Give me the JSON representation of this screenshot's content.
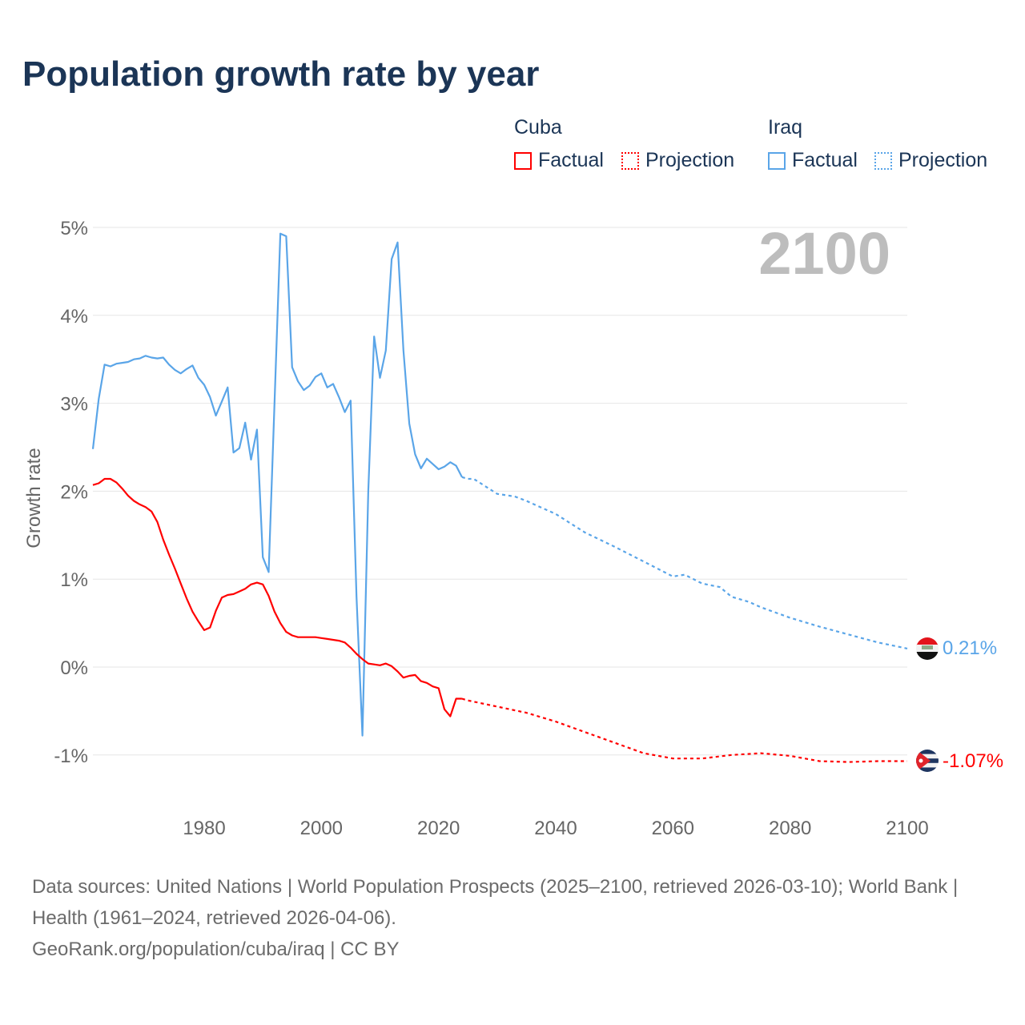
{
  "title": "Population growth rate by year",
  "legend": {
    "groups": [
      {
        "name": "Cuba",
        "color": "#ff0000",
        "factual": "Factual",
        "projection": "Projection"
      },
      {
        "name": "Iraq",
        "color": "#5aa5e8",
        "factual": "Factual",
        "projection": "Projection"
      }
    ]
  },
  "year_label": "2100",
  "footer": {
    "sources": "Data sources: United Nations | World Population Prospects (2025–2100, retrieved 2026-03-10); World Bank | Health (1961–2024, retrieved 2026-04-06).",
    "link": "GeoRank.org/population/cuba/iraq | CC BY"
  },
  "chart_data": {
    "type": "line",
    "title": "Population growth rate by year",
    "xlabel": "",
    "ylabel": "Growth rate",
    "xlim": [
      1961,
      2100
    ],
    "ylim": [
      -1.5,
      5.3
    ],
    "x_ticks": [
      1980,
      2000,
      2020,
      2040,
      2060,
      2080,
      2100
    ],
    "x_tick_labels": [
      "1980",
      "2000",
      "2020",
      "2040",
      "2060",
      "2080",
      "2100"
    ],
    "y_ticks": [
      5,
      4,
      3,
      2,
      1,
      0,
      -1
    ],
    "y_tick_labels": [
      "5%",
      "4%",
      "3%",
      "2%",
      "1%",
      "0%",
      "-1%"
    ],
    "grid": true,
    "legend_placement": "top-right",
    "series": [
      {
        "name": "Iraq",
        "color": "#5aa5e8",
        "end_label": "0.21%",
        "factual": {
          "x": [
            1961,
            1962,
            1963,
            1964,
            1965,
            1966,
            1967,
            1968,
            1969,
            1970,
            1971,
            1972,
            1973,
            1974,
            1975,
            1976,
            1977,
            1978,
            1979,
            1980,
            1981,
            1982,
            1983,
            1984,
            1985,
            1986,
            1987,
            1988,
            1989,
            1990,
            1991,
            1992,
            1993,
            1994,
            1995,
            1996,
            1997,
            1998,
            1999,
            2000,
            2001,
            2002,
            2003,
            2004,
            2005,
            2006,
            2007,
            2008,
            2009,
            2010,
            2011,
            2012,
            2013,
            2014,
            2015,
            2016,
            2017,
            2018,
            2019,
            2020,
            2021,
            2022,
            2023,
            2024
          ],
          "y": [
            2.48,
            3.05,
            3.44,
            3.42,
            3.45,
            3.46,
            3.47,
            3.5,
            3.51,
            3.54,
            3.52,
            3.51,
            3.52,
            3.44,
            3.38,
            3.34,
            3.39,
            3.43,
            3.29,
            3.21,
            3.07,
            2.86,
            3.02,
            3.18,
            2.44,
            2.49,
            2.78,
            2.36,
            2.7,
            1.25,
            1.08,
            3.0,
            4.93,
            4.9,
            3.41,
            3.25,
            3.15,
            3.2,
            3.3,
            3.34,
            3.18,
            3.22,
            3.07,
            2.9,
            3.03,
            0.8,
            -0.78,
            2.0,
            3.76,
            3.29,
            3.6,
            4.64,
            4.83,
            3.6,
            2.77,
            2.42,
            2.26,
            2.37,
            2.31,
            2.25,
            2.28,
            2.33,
            2.29,
            2.16
          ]
        },
        "projection": {
          "x": [
            2024,
            2025,
            2026,
            2030,
            2033,
            2035,
            2038,
            2040,
            2045,
            2050,
            2055,
            2060,
            2062,
            2065,
            2068,
            2070,
            2073,
            2075,
            2080,
            2085,
            2090,
            2095,
            2100
          ],
          "y": [
            2.16,
            2.14,
            2.14,
            1.97,
            1.94,
            1.89,
            1.8,
            1.74,
            1.53,
            1.37,
            1.2,
            1.03,
            1.05,
            0.95,
            0.91,
            0.8,
            0.74,
            0.68,
            0.56,
            0.46,
            0.37,
            0.28,
            0.21
          ]
        }
      },
      {
        "name": "Cuba",
        "color": "#ff0000",
        "end_label": "-1.07%",
        "factual": {
          "x": [
            1961,
            1962,
            1963,
            1964,
            1965,
            1966,
            1967,
            1968,
            1969,
            1970,
            1971,
            1972,
            1973,
            1974,
            1975,
            1976,
            1977,
            1978,
            1979,
            1980,
            1981,
            1982,
            1983,
            1984,
            1985,
            1986,
            1987,
            1988,
            1989,
            1990,
            1991,
            1992,
            1993,
            1994,
            1995,
            1996,
            1997,
            1998,
            1999,
            2000,
            2001,
            2002,
            2003,
            2004,
            2005,
            2006,
            2007,
            2008,
            2009,
            2010,
            2011,
            2012,
            2013,
            2014,
            2015,
            2016,
            2017,
            2018,
            2019,
            2020,
            2021,
            2022,
            2023,
            2024
          ],
          "y": [
            2.07,
            2.09,
            2.14,
            2.14,
            2.1,
            2.03,
            1.95,
            1.89,
            1.85,
            1.82,
            1.77,
            1.65,
            1.45,
            1.28,
            1.12,
            0.95,
            0.78,
            0.63,
            0.52,
            0.42,
            0.45,
            0.64,
            0.79,
            0.82,
            0.83,
            0.86,
            0.89,
            0.94,
            0.96,
            0.94,
            0.81,
            0.63,
            0.5,
            0.4,
            0.36,
            0.34,
            0.34,
            0.34,
            0.34,
            0.33,
            0.32,
            0.31,
            0.3,
            0.28,
            0.22,
            0.15,
            0.09,
            0.04,
            0.03,
            0.02,
            0.04,
            0.01,
            -0.05,
            -0.12,
            -0.1,
            -0.09,
            -0.16,
            -0.18,
            -0.22,
            -0.24,
            -0.48,
            -0.56,
            -0.36,
            -0.36
          ]
        },
        "projection": {
          "x": [
            2024,
            2025,
            2030,
            2035,
            2040,
            2045,
            2050,
            2055,
            2060,
            2065,
            2070,
            2075,
            2080,
            2085,
            2090,
            2095,
            2100
          ],
          "y": [
            -0.36,
            -0.38,
            -0.45,
            -0.52,
            -0.62,
            -0.74,
            -0.86,
            -0.98,
            -1.04,
            -1.04,
            -1.0,
            -0.98,
            -1.01,
            -1.07,
            -1.08,
            -1.07,
            -1.07
          ]
        }
      }
    ]
  }
}
